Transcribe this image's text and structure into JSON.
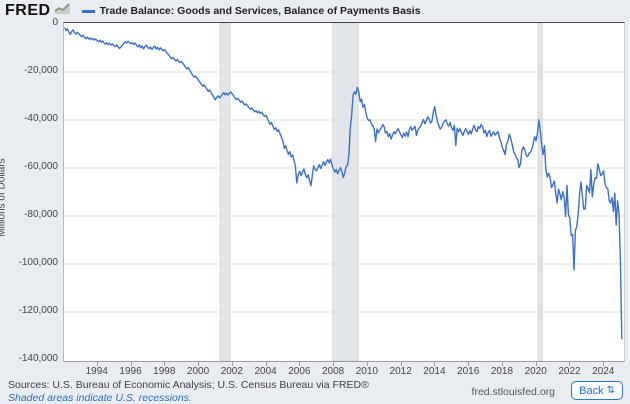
{
  "header": {
    "logo": "FRED",
    "legend_label": "Trade Balance: Goods and Services, Balance of Payments Basis"
  },
  "footer": {
    "sources": "Sources: U.S. Bureau of Economic Analysis; U.S. Census Bureau via FRED®",
    "recession_note": "Shaded areas indicate U.S. recessions.",
    "site": "fred.stlouisfed.org",
    "back_label": "Back",
    "back_icon": "⇅"
  },
  "colors": {
    "line": "#3a70c9",
    "recession_band": "#e2e5ea",
    "recession_band_edge": "#d2d6db",
    "grid": "#e0e0e0",
    "logo_icon": "#8a9a80"
  },
  "chart_data": {
    "type": "line",
    "title": "Trade Balance: Goods and Services, Balance of Payments Basis",
    "xlabel": "",
    "ylabel": "Millions of Dollars",
    "ylim": [
      -140000,
      0
    ],
    "ytick_step": 20000,
    "xlim": [
      1992.0,
      2025.17
    ],
    "xticks": [
      1994,
      1996,
      1998,
      2000,
      2002,
      2004,
      2006,
      2008,
      2010,
      2012,
      2014,
      2016,
      2018,
      2020,
      2022,
      2024
    ],
    "grid": "horizontal",
    "legend_position": "top",
    "frequency": "monthly",
    "start": "1992-01",
    "end": "2025-01",
    "units": "Millions of Dollars",
    "recessions": [
      [
        2001.25,
        2001.83
      ],
      [
        2007.92,
        2009.42
      ],
      [
        2020.08,
        2020.33
      ]
    ],
    "values_by_year": {
      "1992": [
        -1500,
        -2800,
        -2100,
        -3400,
        -4300,
        -3100,
        -2400,
        -3700,
        -4200,
        -3400,
        -4000,
        -4700
      ],
      "1993": [
        -5300,
        -4700,
        -5500,
        -6100,
        -5400,
        -6300,
        -5800,
        -6500,
        -6000,
        -6700,
        -6200,
        -6900
      ],
      "1994": [
        -7300,
        -6800,
        -7600,
        -7100,
        -7900,
        -8400,
        -7800,
        -8600,
        -8100,
        -8800,
        -8300,
        -9000
      ],
      "1995": [
        -9400,
        -8700,
        -9600,
        -10200,
        -9500,
        -8800,
        -8100,
        -7400,
        -7900,
        -7200,
        -7700,
        -8200
      ],
      "1996": [
        -7800,
        -8500,
        -7900,
        -8800,
        -9600,
        -8700,
        -9900,
        -9200,
        -10400,
        -9500,
        -8800,
        -9700
      ],
      "1997": [
        -10300,
        -9600,
        -10600,
        -9800,
        -9200,
        -10400,
        -9700,
        -10800,
        -9900,
        -10500,
        -11200,
        -10700
      ],
      "1998": [
        -11600,
        -12300,
        -12900,
        -13800,
        -14500,
        -13900,
        -14700,
        -15400,
        -14800,
        -15500,
        -16100,
        -15600
      ],
      "1999": [
        -16400,
        -17200,
        -18100,
        -18700,
        -18200,
        -19400,
        -20500,
        -21300,
        -22200,
        -21700,
        -22600,
        -23400
      ],
      "2000": [
        -24200,
        -25000,
        -25900,
        -25300,
        -26200,
        -27100,
        -28000,
        -27500,
        -28600,
        -29400,
        -30600,
        -31600
      ],
      "2001": [
        -30700,
        -29900,
        -30800,
        -30100,
        -29400,
        -28600,
        -29500,
        -28800,
        -29600,
        -29000,
        -28300,
        -29100
      ],
      "2002": [
        -29800,
        -30700,
        -31500,
        -30900,
        -31800,
        -32600,
        -32100,
        -33000,
        -33800,
        -33300,
        -34100,
        -34900
      ],
      "2003": [
        -35600,
        -34900,
        -35800,
        -36600,
        -36100,
        -37000,
        -36400,
        -37300,
        -36800,
        -37700,
        -38500,
        -38000
      ],
      "2004": [
        -39200,
        -40500,
        -41800,
        -41100,
        -42600,
        -43900,
        -43200,
        -44800,
        -44100,
        -45700,
        -47200,
        -48600
      ],
      "2005": [
        -51800,
        -50700,
        -52600,
        -54300,
        -53200,
        -55400,
        -54600,
        -56800,
        -59200,
        -66200,
        -62900,
        -61300
      ],
      "2006": [
        -63200,
        -61700,
        -60400,
        -62600,
        -64100,
        -62800,
        -65000,
        -67400,
        -63300,
        -59100,
        -60500,
        -61200
      ],
      "2007": [
        -59900,
        -58600,
        -60200,
        -58700,
        -57400,
        -58900,
        -57600,
        -56500,
        -57900,
        -56300,
        -58800,
        -60400
      ],
      "2008": [
        -61700,
        -60600,
        -62400,
        -61000,
        -59800,
        -61600,
        -64000,
        -62100,
        -59400,
        -58900,
        -54500,
        -43200
      ],
      "2009": [
        -37900,
        -29600,
        -28300,
        -29200,
        -26400,
        -28000,
        -32400,
        -31300,
        -34700,
        -33600,
        -36800,
        -39200
      ],
      "2010": [
        -40200,
        -39900,
        -41600,
        -42400,
        -43700,
        -49000,
        -43800,
        -45300,
        -44200,
        -43300,
        -41900,
        -42700
      ],
      "2011": [
        -45400,
        -44800,
        -46900,
        -45700,
        -48000,
        -46300,
        -44900,
        -45800,
        -44400,
        -43600,
        -45000,
        -46200
      ],
      "2012": [
        -47300,
        -45500,
        -46700,
        -45000,
        -46900,
        -44000,
        -42800,
        -44300,
        -43500,
        -42600,
        -46400,
        -44200
      ],
      "2013": [
        -43300,
        -42700,
        -40900,
        -39800,
        -41600,
        -40400,
        -38700,
        -39500,
        -41300,
        -40600,
        -36700,
        -34400
      ],
      "2014": [
        -38100,
        -40700,
        -42400,
        -43800,
        -42900,
        -41200,
        -40400,
        -39900,
        -41800,
        -42500,
        -41000,
        -43200
      ],
      "2015": [
        -44300,
        -42200,
        -50700,
        -43400,
        -44900,
        -43700,
        -45200,
        -46400,
        -44800,
        -43600,
        -44700,
        -46000
      ],
      "2016": [
        -44400,
        -45800,
        -43700,
        -42200,
        -44000,
        -44900,
        -42800,
        -43500,
        -41900,
        -42700,
        -45400,
        -44300
      ],
      "2017": [
        -46900,
        -45200,
        -44400,
        -46800,
        -45700,
        -45000,
        -46300,
        -45500,
        -44800,
        -47400,
        -49000,
        -51300
      ],
      "2018": [
        -52700,
        -54400,
        -50200,
        -48800,
        -45900,
        -47700,
        -50000,
        -52900,
        -54200,
        -55700,
        -56400,
        -59800
      ],
      "2019": [
        -58300,
        -52500,
        -51200,
        -52400,
        -54700,
        -55300,
        -53800,
        -53600,
        -52200,
        -49900,
        -46900,
        -48600
      ],
      "2020": [
        -45800,
        -39900,
        -44300,
        -49900,
        -54400,
        -50700,
        -60800,
        -63800,
        -62200,
        -64000,
        -68200,
        -66900
      ],
      "2021": [
        -65500,
        -70500,
        -74600,
        -68800,
        -70700,
        -73300,
        -69900,
        -72400,
        -80200,
        -67300,
        -79400,
        -80800
      ],
      "2022": [
        -88200,
        -87700,
        -102500,
        -86000,
        -84300,
        -79200,
        -70600,
        -65800,
        -72000,
        -77100,
        -77000,
        -67300
      ],
      "2023": [
        -68500,
        -70300,
        -60700,
        -72000,
        -66800,
        -64100,
        -64300,
        -58200,
        -60600,
        -63200,
        -62500,
        -61200
      ],
      "2024": [
        -66500,
        -68200,
        -68600,
        -73600,
        -74600,
        -72300,
        -78100,
        -70500,
        -83800,
        -73700,
        -78900,
        -98400
      ],
      "2025": [
        -131400
      ]
    }
  }
}
